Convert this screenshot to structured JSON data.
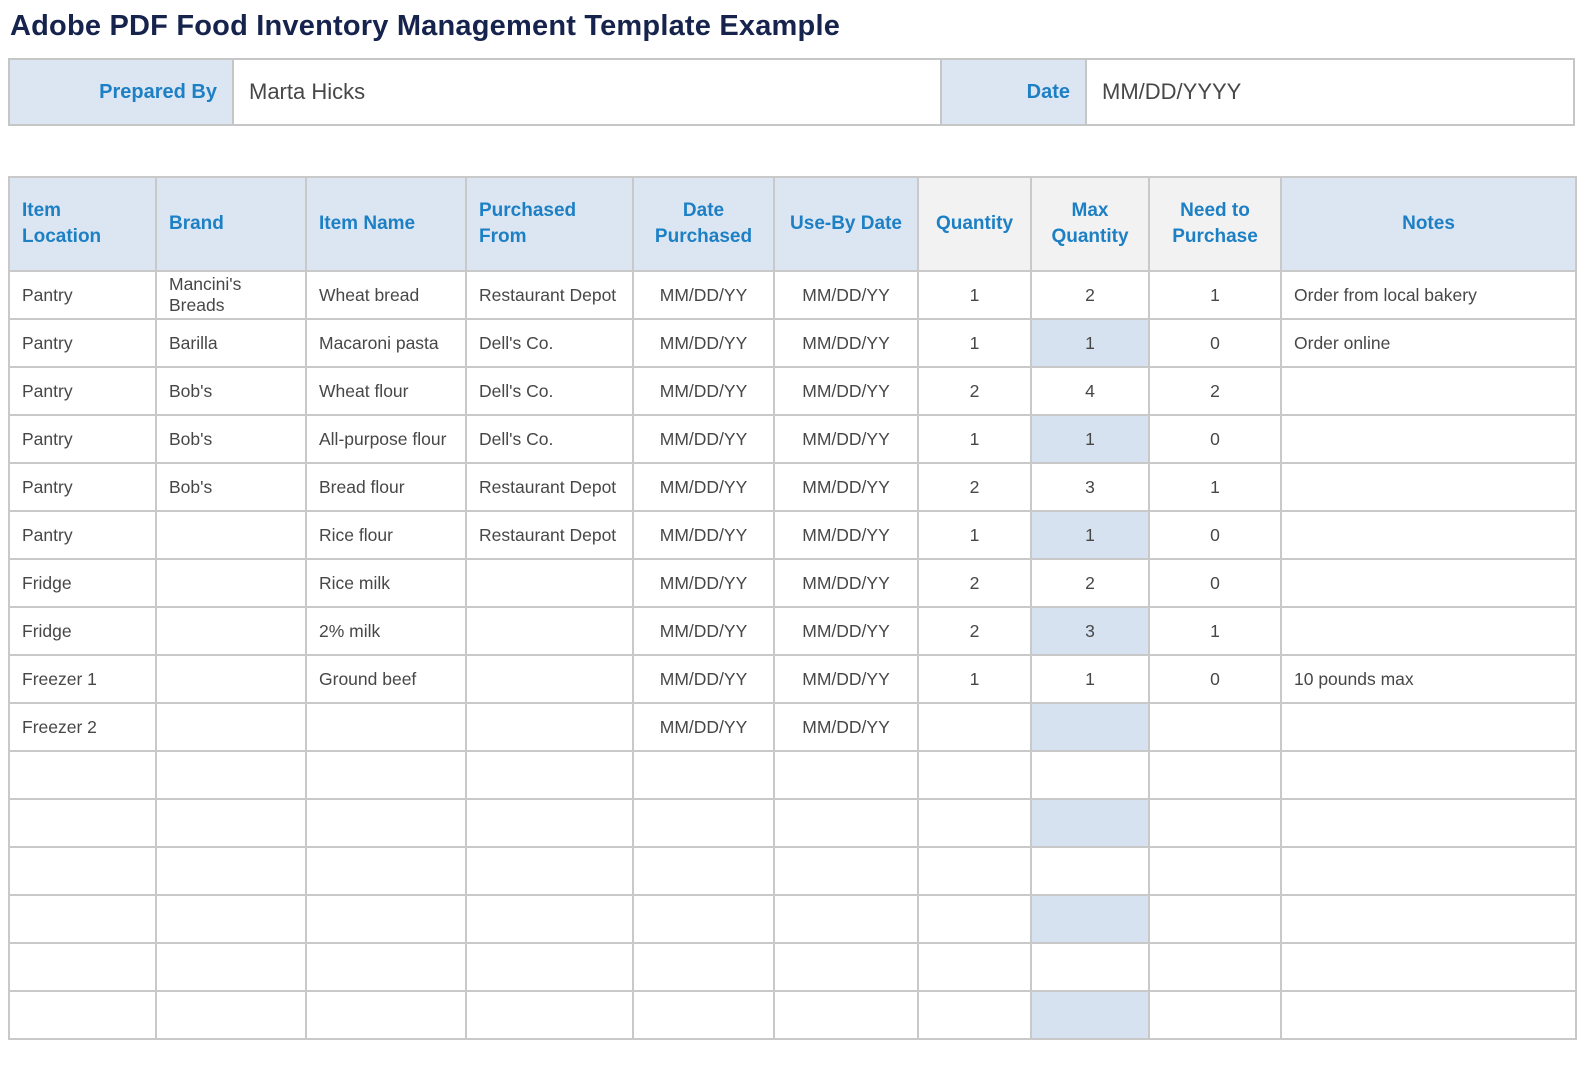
{
  "page": {
    "title": "Adobe PDF Food Inventory Management Template Example"
  },
  "form": {
    "prepared_by": {
      "label": "Prepared By",
      "value": "Marta Hicks"
    },
    "date": {
      "label": "Date",
      "value": "MM/DD/YYYY"
    }
  },
  "colors": {
    "title_navy": "#16234D",
    "accent_blue_text": "#1E80C4",
    "header_fill_blue": "#DCE6F2",
    "header_fill_gray": "#F2F2F2",
    "max_quantity_highlight": "#D7E2F0",
    "border_gray": "#C9C9C9",
    "body_text": "#474747"
  },
  "table": {
    "columns": [
      {
        "key": "location",
        "label": "Item Location"
      },
      {
        "key": "brand",
        "label": "Brand"
      },
      {
        "key": "item_name",
        "label": "Item Name"
      },
      {
        "key": "purchased_from",
        "label": "Purchased From"
      },
      {
        "key": "date_purchased",
        "label": "Date Purchased"
      },
      {
        "key": "use_by_date",
        "label": "Use-By Date"
      },
      {
        "key": "quantity",
        "label": "Quantity"
      },
      {
        "key": "max_quantity",
        "label": "Max Quantity"
      },
      {
        "key": "need_to_purchase",
        "label": "Need to Purchase"
      },
      {
        "key": "notes",
        "label": "Notes"
      }
    ],
    "rows": [
      {
        "location": "Pantry",
        "brand": "Mancini's Breads",
        "item_name": "Wheat bread",
        "purchased_from": "Restaurant Depot",
        "date_purchased": "MM/DD/YY",
        "use_by_date": "MM/DD/YY",
        "quantity": "1",
        "max_quantity": "2",
        "need_to_purchase": "1",
        "notes": "Order from local bakery",
        "max_highlight": false
      },
      {
        "location": "Pantry",
        "brand": "Barilla",
        "item_name": "Macaroni pasta",
        "purchased_from": "Dell's Co.",
        "date_purchased": "MM/DD/YY",
        "use_by_date": "MM/DD/YY",
        "quantity": "1",
        "max_quantity": "1",
        "need_to_purchase": "0",
        "notes": "Order online",
        "max_highlight": true
      },
      {
        "location": "Pantry",
        "brand": "Bob's",
        "item_name": "Wheat flour",
        "purchased_from": "Dell's Co.",
        "date_purchased": "MM/DD/YY",
        "use_by_date": "MM/DD/YY",
        "quantity": "2",
        "max_quantity": "4",
        "need_to_purchase": "2",
        "notes": "",
        "max_highlight": false
      },
      {
        "location": "Pantry",
        "brand": "Bob's",
        "item_name": "All-purpose flour",
        "purchased_from": "Dell's Co.",
        "date_purchased": "MM/DD/YY",
        "use_by_date": "MM/DD/YY",
        "quantity": "1",
        "max_quantity": "1",
        "need_to_purchase": "0",
        "notes": "",
        "max_highlight": true
      },
      {
        "location": "Pantry",
        "brand": "Bob's",
        "item_name": "Bread flour",
        "purchased_from": "Restaurant Depot",
        "date_purchased": "MM/DD/YY",
        "use_by_date": "MM/DD/YY",
        "quantity": "2",
        "max_quantity": "3",
        "need_to_purchase": "1",
        "notes": "",
        "max_highlight": false
      },
      {
        "location": "Pantry",
        "brand": "",
        "item_name": "Rice flour",
        "purchased_from": "Restaurant Depot",
        "date_purchased": "MM/DD/YY",
        "use_by_date": "MM/DD/YY",
        "quantity": "1",
        "max_quantity": "1",
        "need_to_purchase": "0",
        "notes": "",
        "max_highlight": true
      },
      {
        "location": "Fridge",
        "brand": "",
        "item_name": "Rice milk",
        "purchased_from": "",
        "date_purchased": "MM/DD/YY",
        "use_by_date": "MM/DD/YY",
        "quantity": "2",
        "max_quantity": "2",
        "need_to_purchase": "0",
        "notes": "",
        "max_highlight": false
      },
      {
        "location": "Fridge",
        "brand": "",
        "item_name": "2% milk",
        "purchased_from": "",
        "date_purchased": "MM/DD/YY",
        "use_by_date": "MM/DD/YY",
        "quantity": "2",
        "max_quantity": "3",
        "need_to_purchase": "1",
        "notes": "",
        "max_highlight": true
      },
      {
        "location": "Freezer 1",
        "brand": "",
        "item_name": "Ground beef",
        "purchased_from": "",
        "date_purchased": "MM/DD/YY",
        "use_by_date": "MM/DD/YY",
        "quantity": "1",
        "max_quantity": "1",
        "need_to_purchase": "0",
        "notes": "10 pounds max",
        "max_highlight": false
      },
      {
        "location": "Freezer 2",
        "brand": "",
        "item_name": "",
        "purchased_from": "",
        "date_purchased": "MM/DD/YY",
        "use_by_date": "MM/DD/YY",
        "quantity": "",
        "max_quantity": "",
        "need_to_purchase": "",
        "notes": "",
        "max_highlight": true
      },
      {
        "location": "",
        "brand": "",
        "item_name": "",
        "purchased_from": "",
        "date_purchased": "",
        "use_by_date": "",
        "quantity": "",
        "max_quantity": "",
        "need_to_purchase": "",
        "notes": "",
        "max_highlight": false
      },
      {
        "location": "",
        "brand": "",
        "item_name": "",
        "purchased_from": "",
        "date_purchased": "",
        "use_by_date": "",
        "quantity": "",
        "max_quantity": "",
        "need_to_purchase": "",
        "notes": "",
        "max_highlight": true
      },
      {
        "location": "",
        "brand": "",
        "item_name": "",
        "purchased_from": "",
        "date_purchased": "",
        "use_by_date": "",
        "quantity": "",
        "max_quantity": "",
        "need_to_purchase": "",
        "notes": "",
        "max_highlight": false
      },
      {
        "location": "",
        "brand": "",
        "item_name": "",
        "purchased_from": "",
        "date_purchased": "",
        "use_by_date": "",
        "quantity": "",
        "max_quantity": "",
        "need_to_purchase": "",
        "notes": "",
        "max_highlight": true
      },
      {
        "location": "",
        "brand": "",
        "item_name": "",
        "purchased_from": "",
        "date_purchased": "",
        "use_by_date": "",
        "quantity": "",
        "max_quantity": "",
        "need_to_purchase": "",
        "notes": "",
        "max_highlight": false
      },
      {
        "location": "",
        "brand": "",
        "item_name": "",
        "purchased_from": "",
        "date_purchased": "",
        "use_by_date": "",
        "quantity": "",
        "max_quantity": "",
        "need_to_purchase": "",
        "notes": "",
        "max_highlight": true
      }
    ]
  }
}
